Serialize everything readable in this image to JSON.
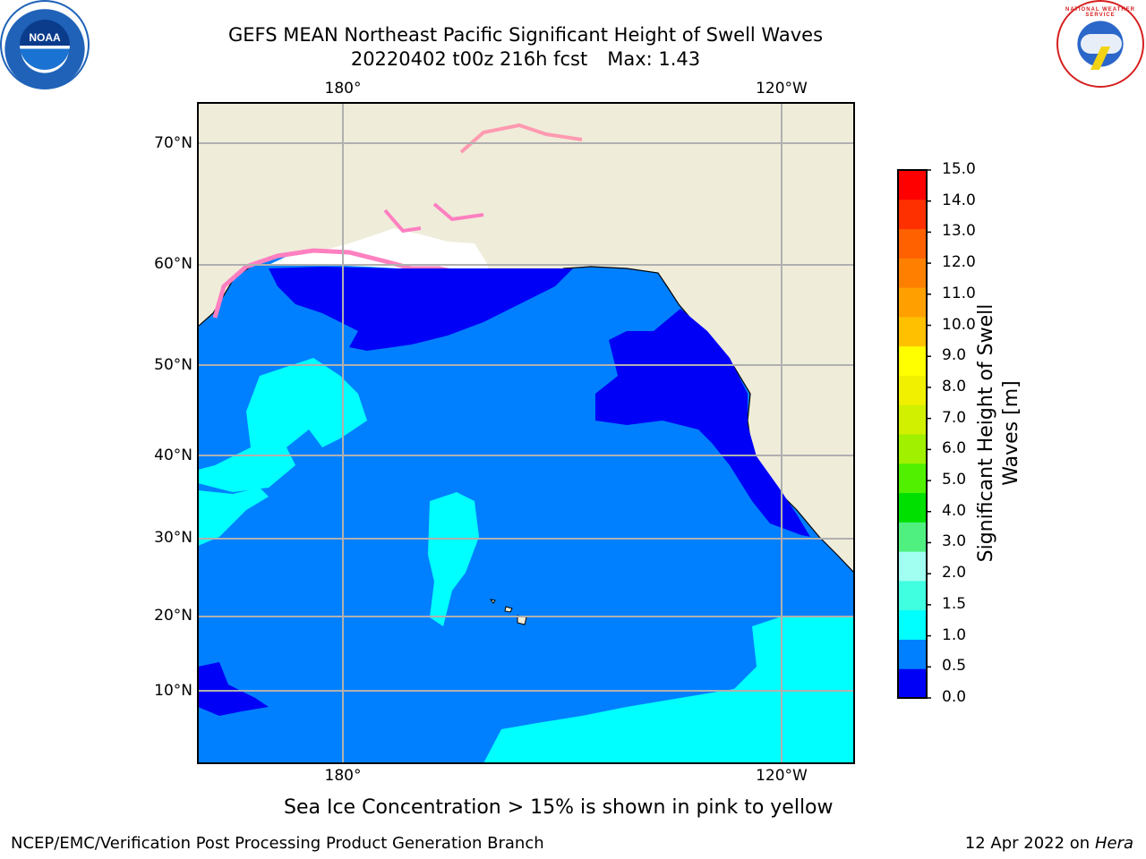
{
  "header": {
    "title_line1": "GEFS MEAN Northeast Pacific Significant Height of Swell Waves",
    "title_date": "20220402 t00z 216h fcst",
    "title_max": "Max: 1.43"
  },
  "logos": {
    "left": "noaa-logo",
    "left_text": "NOAA",
    "right": "national-weather-service-logo",
    "right_text": "NATIONAL WEATHER SERVICE"
  },
  "map": {
    "lon_ticks_top": [
      "180°",
      "120°W"
    ],
    "lon_ticks_bottom": [
      "180°",
      "120°W"
    ],
    "lat_ticks": [
      "70°N",
      "60°N",
      "50°N",
      "40°N",
      "30°N",
      "20°N",
      "10°N"
    ],
    "colors": {
      "land": "#efecda",
      "ocean_low": "#0000f6",
      "ocean_mid": "#0080ff",
      "ocean_cyan": "#00ffff",
      "ice": "#ff80c0",
      "gridline": "#b0b0b0"
    }
  },
  "colorbar": {
    "label": "Significant Height of Swell Waves [m]",
    "label_line1": "Significant Height of Swell",
    "label_line2": "Waves [m]",
    "ticks": [
      "15.0",
      "14.0",
      "13.0",
      "12.0",
      "11.0",
      "10.0",
      "9.0",
      "8.0",
      "7.0",
      "6.0",
      "5.0",
      "4.0",
      "3.0",
      "2.0",
      "1.5",
      "1.0",
      "0.5",
      "0.0"
    ],
    "colors_bottom_to_top": [
      "#0000f6",
      "#0080ff",
      "#00ffff",
      "#40ffe0",
      "#a0fff0",
      "#50f080",
      "#00e000",
      "#50f000",
      "#a0f000",
      "#d0f000",
      "#f0f000",
      "#ffff00",
      "#ffc000",
      "#ffa000",
      "#ff8000",
      "#ff6000",
      "#ff3000",
      "#ff0000"
    ]
  },
  "note": "Sea Ice Concentration > 15% is shown in pink to yellow",
  "footer": {
    "left": "NCEP/EMC/Verification Post Processing Product Generation Branch",
    "right_prefix": "12 Apr 2022 on ",
    "right_host": "Hera"
  }
}
